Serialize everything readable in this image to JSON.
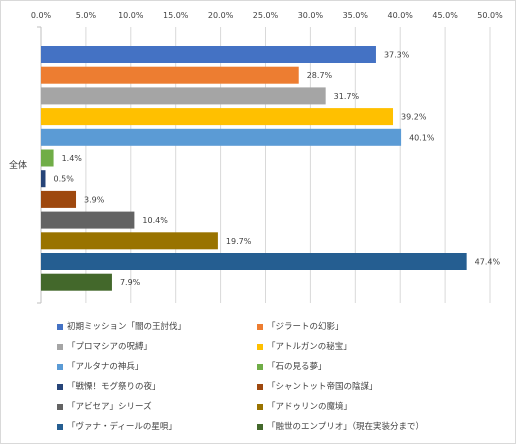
{
  "chart_data": {
    "type": "bar",
    "orientation": "horizontal",
    "categories": [
      "全体"
    ],
    "xlim": [
      0,
      50
    ],
    "x_ticks": [
      "0.0%",
      "5.0%",
      "10.0%",
      "15.0%",
      "20.0%",
      "25.0%",
      "30.0%",
      "35.0%",
      "40.0%",
      "45.0%",
      "50.0%"
    ],
    "x_axis_position": "top",
    "grid": true,
    "legend_position": "bottom",
    "series": [
      {
        "name": "初期ミッション「闇の王討伐」",
        "value": 37.3,
        "label": "37.3%",
        "color": "#4472c4"
      },
      {
        "name": "「ジラートの幻影」",
        "value": 28.7,
        "label": "28.7%",
        "color": "#ed7d31"
      },
      {
        "name": "「プロマシアの呪縛」",
        "value": 31.7,
        "label": "31.7%",
        "color": "#a5a5a5"
      },
      {
        "name": "「アトルガンの秘宝」",
        "value": 39.2,
        "label": "39.2%",
        "color": "#ffc000"
      },
      {
        "name": "「アルタナの神兵」",
        "value": 40.1,
        "label": "40.1%",
        "color": "#5b9bd5"
      },
      {
        "name": "「石の見る夢」",
        "value": 1.4,
        "label": "1.4%",
        "color": "#70ad47"
      },
      {
        "name": "「戦慄！モグ祭りの夜」",
        "value": 0.5,
        "label": "0.5%",
        "color": "#264478"
      },
      {
        "name": "「シャントット帝国の陰謀」",
        "value": 3.9,
        "label": "3.9%",
        "color": "#9e480e"
      },
      {
        "name": "「アビセア」シリーズ",
        "value": 10.4,
        "label": "10.4%",
        "color": "#636363"
      },
      {
        "name": "「アドゥリンの魔境」",
        "value": 19.7,
        "label": "19.7%",
        "color": "#997300"
      },
      {
        "name": "「ヴァナ・ディールの星唄」",
        "value": 47.4,
        "label": "47.4%",
        "color": "#255e91"
      },
      {
        "name": "「融世のエンプリオ」（現在実装分まで）",
        "value": 7.9,
        "label": "7.9%",
        "color": "#43682b"
      }
    ]
  }
}
